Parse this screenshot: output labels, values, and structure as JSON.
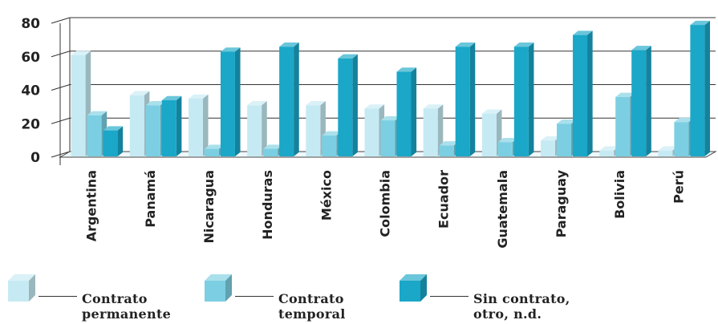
{
  "chart_data": {
    "type": "bar",
    "style": "3d-clustered",
    "categories": [
      "Argentina",
      "Panamá",
      "Nicaragua",
      "Honduras",
      "México",
      "Colombia",
      "Ecuador",
      "Guatemala",
      "Paraguay",
      "Bolivia",
      "Perú"
    ],
    "series": [
      {
        "name": "Contrato\npermanente",
        "color": "#c6eaf3",
        "values": [
          61,
          37,
          35,
          31,
          31,
          29,
          29,
          26,
          10,
          4,
          4
        ]
      },
      {
        "name": "Contrato\ntemporal",
        "color": "#7ccfe2",
        "values": [
          25,
          31,
          5,
          5,
          13,
          22,
          7,
          9,
          20,
          36,
          21
        ]
      },
      {
        "name": "Sin contrato,\notro, n.d.",
        "color": "#1aa7c8",
        "values": [
          16,
          34,
          63,
          66,
          59,
          51,
          66,
          66,
          73,
          64,
          79
        ]
      }
    ],
    "ylim": [
      0,
      80
    ],
    "yticks": [
      0,
      20,
      40,
      60,
      80
    ],
    "grid": true,
    "legend": "bottom"
  }
}
